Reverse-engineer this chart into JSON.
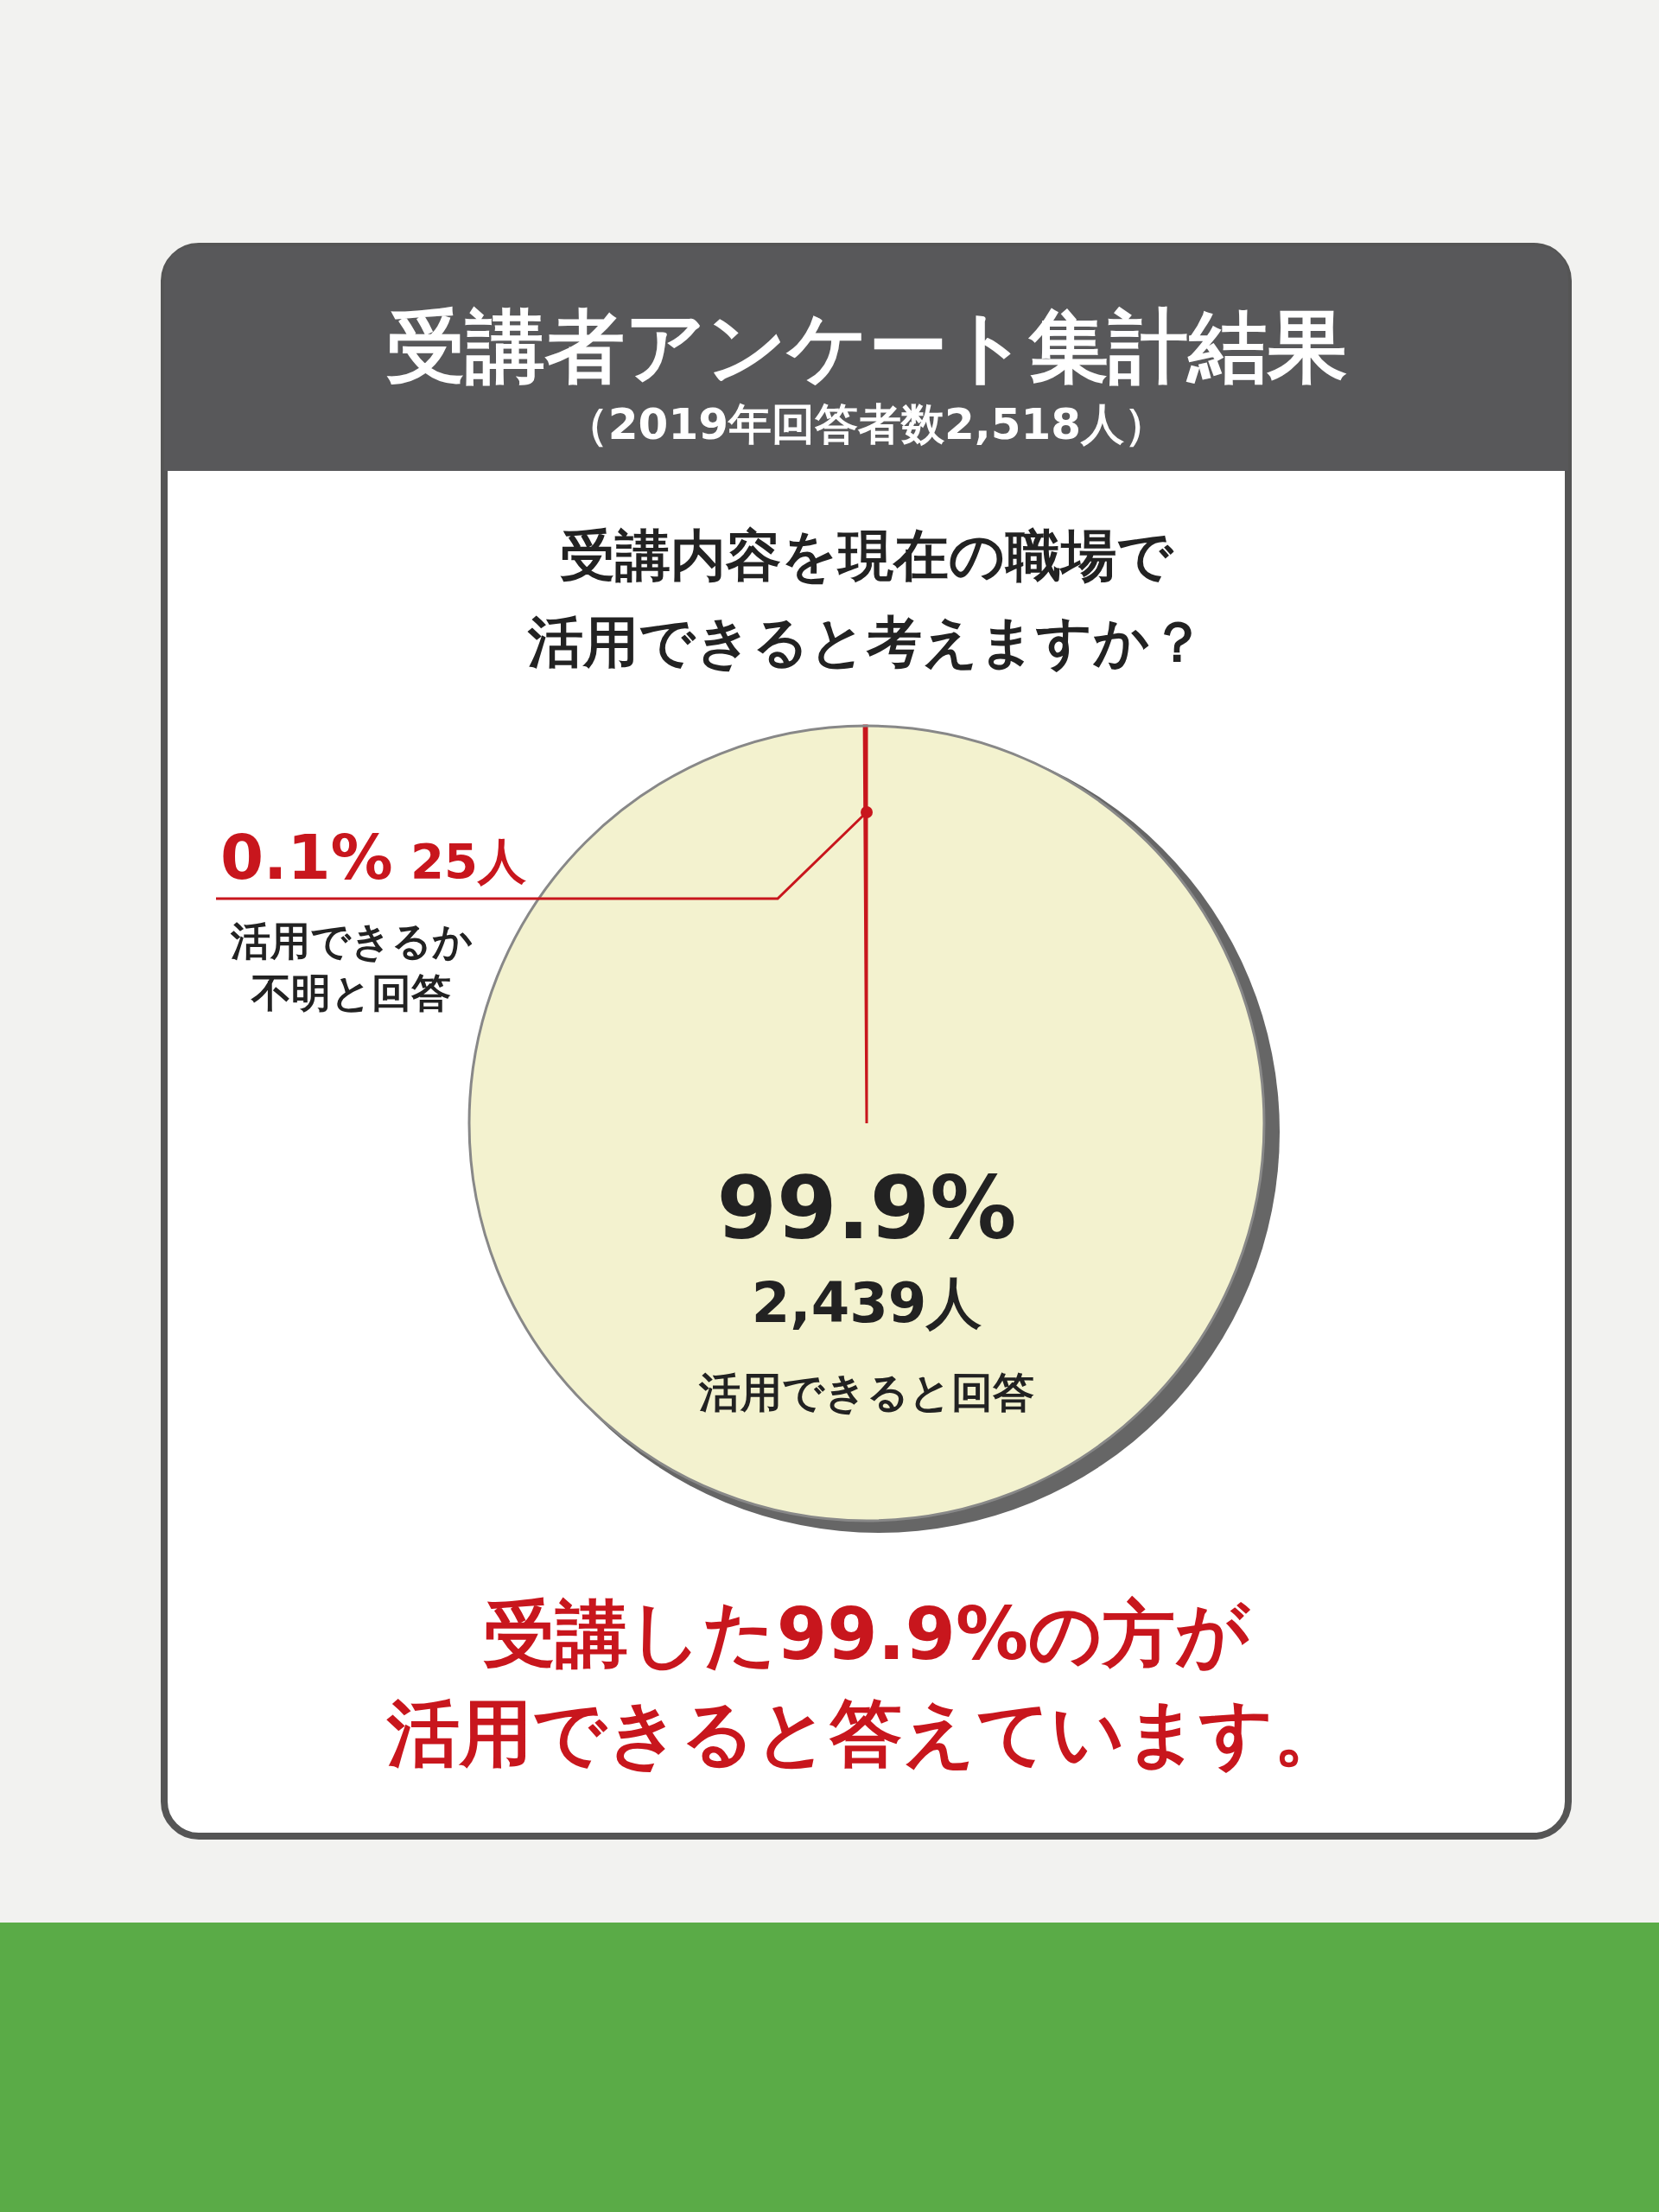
{
  "chart_data": {
    "type": "pie",
    "title": "受講者アンケート集計結果",
    "subtitle": "（2019年回答者数2,518人）",
    "categories": [
      "活用できると回答",
      "活用できるか不明と回答"
    ],
    "values": [
      99.9,
      0.1
    ],
    "colors": [
      "#f3f2cf",
      "#c8161d"
    ],
    "value_labels": [
      "99.9%",
      "0.1%"
    ],
    "annotations": [
      "受講内容を現在の職場で",
      "活用できると考えますか？",
      "2,439人",
      "25人",
      "受講した99.9%の方が",
      "活用できると答えています。"
    ]
  }
}
